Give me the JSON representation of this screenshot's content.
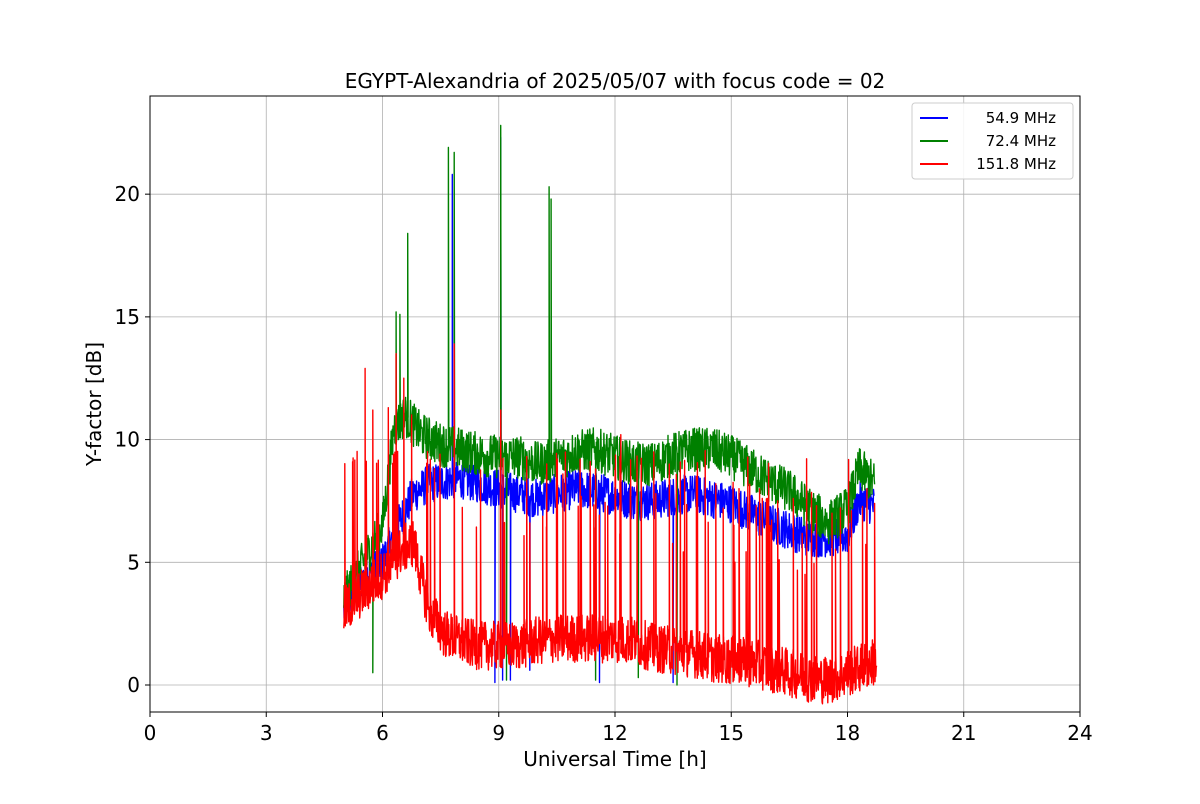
{
  "chart_data": {
    "type": "line",
    "title": "EGYPT-Alexandria of 2025/05/07 with focus code = 02",
    "xlabel": "Universal Time [h]",
    "ylabel": "Y-factor [dB]",
    "xlim": [
      0,
      24
    ],
    "ylim": [
      -1.1,
      24
    ],
    "xticks": [
      0,
      3,
      6,
      9,
      12,
      15,
      18,
      21,
      24
    ],
    "yticks": [
      0,
      5,
      10,
      15,
      20
    ],
    "grid": true,
    "legend_position": "top-right",
    "series": [
      {
        "name": "54.9 MHz",
        "color": "#0000ff",
        "base": [
          [
            5.0,
            3.0
          ],
          [
            5.3,
            4.0
          ],
          [
            5.6,
            4.5
          ],
          [
            6.0,
            5.0
          ],
          [
            6.4,
            6.5
          ],
          [
            6.8,
            7.8
          ],
          [
            7.2,
            8.2
          ],
          [
            7.6,
            8.3
          ],
          [
            8.0,
            8.4
          ],
          [
            8.5,
            8.2
          ],
          [
            9.0,
            8.0
          ],
          [
            9.5,
            7.8
          ],
          [
            10.0,
            7.6
          ],
          [
            10.5,
            7.8
          ],
          [
            11.0,
            8.0
          ],
          [
            11.5,
            7.9
          ],
          [
            12.0,
            7.7
          ],
          [
            12.5,
            7.5
          ],
          [
            13.0,
            7.5
          ],
          [
            13.5,
            7.7
          ],
          [
            14.0,
            7.8
          ],
          [
            14.5,
            7.6
          ],
          [
            15.0,
            7.4
          ],
          [
            15.5,
            7.0
          ],
          [
            16.0,
            6.6
          ],
          [
            16.5,
            6.3
          ],
          [
            17.0,
            6.0
          ],
          [
            17.5,
            6.0
          ],
          [
            18.0,
            6.1
          ],
          [
            18.3,
            7.5
          ],
          [
            18.7,
            7.3
          ]
        ],
        "amplitude": 0.8,
        "spikes": [
          [
            8.9,
            0.1
          ],
          [
            9.1,
            0.2
          ],
          [
            9.3,
            0.2
          ],
          [
            9.8,
            0.6
          ],
          [
            11.6,
            0.1
          ],
          [
            13.5,
            0.1
          ],
          [
            7.8,
            20.8
          ],
          [
            9.05,
            22.3
          ]
        ]
      },
      {
        "name": "72.4 MHz",
        "color": "#008000",
        "base": [
          [
            5.0,
            3.5
          ],
          [
            5.5,
            5.0
          ],
          [
            6.0,
            6.5
          ],
          [
            6.3,
            10.5
          ],
          [
            6.6,
            11.0
          ],
          [
            7.0,
            10.2
          ],
          [
            7.5,
            9.8
          ],
          [
            8.0,
            9.6
          ],
          [
            8.5,
            9.4
          ],
          [
            9.0,
            9.3
          ],
          [
            9.5,
            9.3
          ],
          [
            10.0,
            9.0
          ],
          [
            10.5,
            9.2
          ],
          [
            11.0,
            9.5
          ],
          [
            11.5,
            9.6
          ],
          [
            12.0,
            9.3
          ],
          [
            12.5,
            9.0
          ],
          [
            13.0,
            9.0
          ],
          [
            13.5,
            9.4
          ],
          [
            14.0,
            9.6
          ],
          [
            14.5,
            9.6
          ],
          [
            15.0,
            9.3
          ],
          [
            15.5,
            8.8
          ],
          [
            16.0,
            8.3
          ],
          [
            16.5,
            7.9
          ],
          [
            17.0,
            7.2
          ],
          [
            17.5,
            6.6
          ],
          [
            18.0,
            7.2
          ],
          [
            18.3,
            8.8
          ],
          [
            18.7,
            8.2
          ]
        ],
        "amplitude": 0.9,
        "spikes": [
          [
            6.35,
            15.2
          ],
          [
            6.45,
            15.1
          ],
          [
            6.65,
            18.4
          ],
          [
            7.7,
            21.9
          ],
          [
            7.85,
            21.7
          ],
          [
            9.05,
            22.8
          ],
          [
            10.3,
            20.3
          ],
          [
            10.35,
            19.8
          ],
          [
            5.75,
            0.5
          ],
          [
            9.2,
            0.2
          ],
          [
            11.5,
            0.2
          ],
          [
            12.6,
            0.3
          ],
          [
            13.6,
            0.0
          ]
        ]
      },
      {
        "name": "151.8 MHz",
        "color": "#ff0000",
        "base": [
          [
            5.0,
            3.0
          ],
          [
            5.5,
            3.8
          ],
          [
            6.0,
            4.5
          ],
          [
            6.5,
            5.5
          ],
          [
            6.8,
            5.8
          ],
          [
            7.2,
            3.0
          ],
          [
            7.6,
            2.1
          ],
          [
            8.0,
            1.8
          ],
          [
            8.5,
            1.6
          ],
          [
            9.0,
            1.6
          ],
          [
            9.5,
            1.6
          ],
          [
            10.0,
            1.8
          ],
          [
            10.5,
            1.9
          ],
          [
            11.0,
            1.9
          ],
          [
            11.5,
            1.9
          ],
          [
            12.0,
            1.9
          ],
          [
            12.5,
            1.8
          ],
          [
            13.0,
            1.5
          ],
          [
            13.5,
            1.4
          ],
          [
            14.0,
            1.3
          ],
          [
            14.5,
            1.1
          ],
          [
            15.0,
            1.0
          ],
          [
            15.5,
            0.9
          ],
          [
            16.0,
            0.7
          ],
          [
            16.5,
            0.5
          ],
          [
            17.0,
            0.3
          ],
          [
            17.5,
            0.2
          ],
          [
            18.0,
            0.5
          ],
          [
            18.5,
            0.8
          ],
          [
            18.75,
            1.0
          ]
        ],
        "amplitude": 1.0,
        "spikes": [
          [
            5.55,
            12.9
          ],
          [
            5.75,
            11.2
          ],
          [
            6.15,
            11.3
          ],
          [
            6.35,
            13.5
          ],
          [
            6.55,
            12.5
          ],
          [
            6.75,
            11.0
          ],
          [
            7.85,
            13.9
          ],
          [
            9.05,
            11.2
          ],
          [
            12.15,
            10.2
          ],
          [
            11.5,
            8.8
          ],
          [
            13.0,
            9.5
          ],
          [
            13.4,
            9.0
          ],
          [
            14.1,
            8.5
          ],
          [
            14.6,
            8.2
          ],
          [
            15.2,
            8.0
          ],
          [
            15.8,
            7.6
          ],
          [
            16.2,
            7.5
          ],
          [
            16.6,
            7.6
          ],
          [
            17.2,
            7.3
          ],
          [
            17.6,
            7.0
          ],
          [
            18.1,
            7.1
          ],
          [
            18.5,
            8.0
          ],
          [
            18.7,
            7.4
          ]
        ],
        "spike_count": 95
      }
    ]
  }
}
